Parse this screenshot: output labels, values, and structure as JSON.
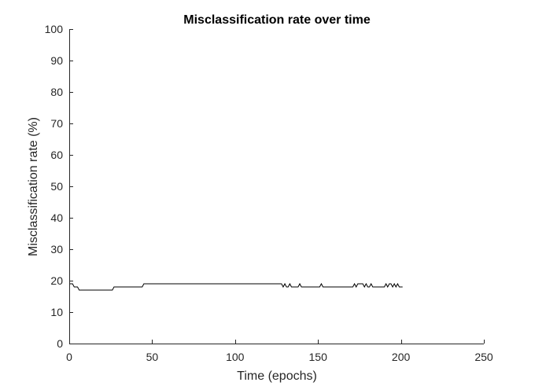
{
  "chart_data": {
    "type": "line",
    "title": "Misclassification rate over time",
    "xlabel": "Time (epochs)",
    "ylabel": "Misclassification rate (%)",
    "xlim": [
      0,
      250
    ],
    "ylim": [
      0,
      100
    ],
    "xticks": [
      0,
      50,
      100,
      150,
      200,
      250
    ],
    "yticks": [
      0,
      10,
      20,
      30,
      40,
      50,
      60,
      70,
      80,
      90,
      100
    ],
    "grid": false,
    "line_color": "#000000",
    "series": [
      {
        "x": [
          0,
          1,
          2,
          3,
          4,
          5,
          6,
          7,
          8,
          26,
          27,
          44,
          45,
          128,
          129,
          130,
          131,
          132,
          133,
          134,
          135,
          138,
          139,
          140,
          141,
          151,
          152,
          153,
          154,
          171,
          172,
          173,
          174,
          175,
          176,
          177,
          178,
          179,
          180,
          181,
          182,
          183,
          184,
          185,
          190,
          191,
          192,
          193,
          194,
          195,
          196,
          197,
          198,
          199,
          200,
          201
        ],
        "y": [
          19,
          19,
          19,
          18,
          18,
          18,
          17,
          17,
          17,
          17,
          18,
          18,
          19,
          19,
          18,
          19,
          18,
          18,
          19,
          18,
          18,
          18,
          19,
          18,
          18,
          18,
          19,
          18,
          18,
          18,
          19,
          18,
          19,
          19,
          19,
          19,
          18,
          19,
          18,
          18,
          19,
          18,
          18,
          18,
          18,
          19,
          18,
          19,
          19,
          18,
          19,
          18,
          19,
          18,
          18,
          18
        ]
      }
    ]
  }
}
